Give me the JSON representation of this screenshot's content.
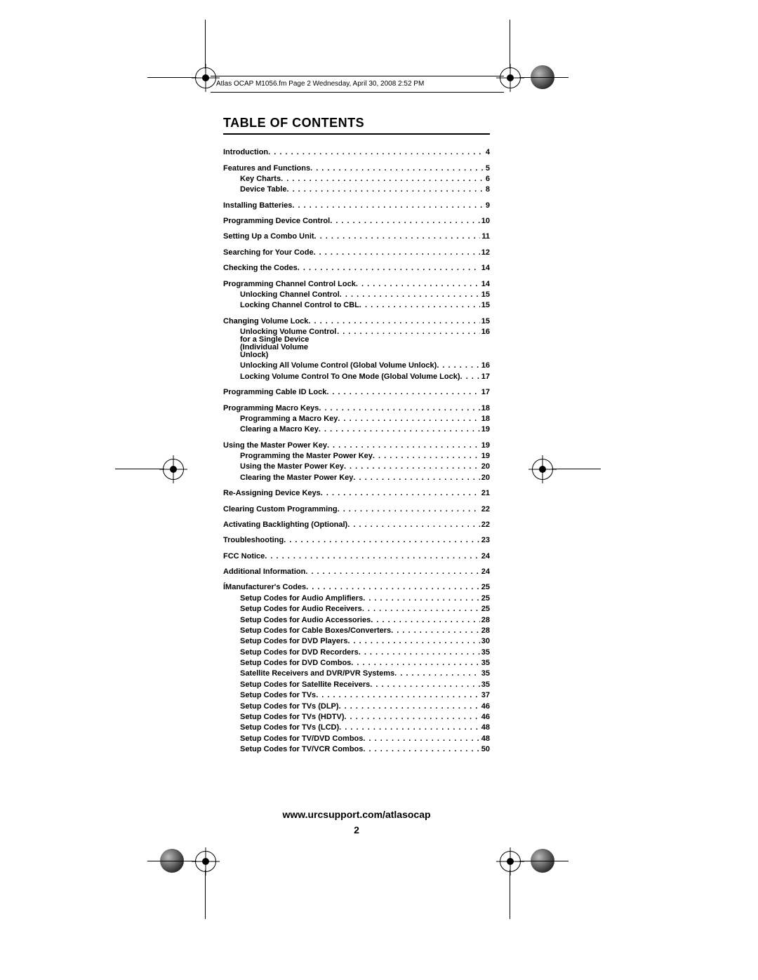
{
  "header_text": "Atlas OCAP M1056.fm  Page 2  Wednesday, April 30, 2008  2:52 PM",
  "title": "TABLE OF CONTENTS",
  "footer_url": "www.urcsupport.com/atlasocap",
  "footer_page": "2",
  "toc": [
    {
      "label": "Introduction",
      "page": "4",
      "level": 0,
      "gap_before": false
    },
    {
      "label": "Features and Functions",
      "page": "5",
      "level": 0,
      "gap_before": true
    },
    {
      "label": "Key Charts",
      "page": "6",
      "level": 1
    },
    {
      "label": "Device Table",
      "page": "8",
      "level": 1
    },
    {
      "label": "Installing Batteries",
      "page": "9",
      "level": 0,
      "gap_before": true
    },
    {
      "label": "Programming Device Control",
      "page": "10",
      "level": 0,
      "gap_before": true
    },
    {
      "label": "Setting Up a Combo Unit",
      "page": "11",
      "level": 0,
      "gap_before": true
    },
    {
      "label": "Searching for Your Code",
      "page": "12",
      "level": 0,
      "gap_before": true
    },
    {
      "label": "Checking the Codes",
      "page": "14",
      "level": 0,
      "gap_before": true
    },
    {
      "label": "Programming Channel Control Lock",
      "page": "14",
      "level": 0,
      "gap_before": true
    },
    {
      "label": "Unlocking Channel Control",
      "page": "15",
      "level": 1
    },
    {
      "label": "Locking Channel Control to CBL",
      "page": "15",
      "level": 1
    },
    {
      "label": "Changing Volume Lock",
      "page": "15",
      "level": 0,
      "gap_before": true
    },
    {
      "label": "Unlocking Volume Control for a Single Device (Individual Volume Unlock)",
      "page": "16",
      "level": 1,
      "wrap": true
    },
    {
      "label": "Unlocking All Volume Control (Global Volume Unlock)",
      "page": "16",
      "level": 1
    },
    {
      "label": "Locking Volume Control To One Mode (Global Volume Lock)",
      "page": "17",
      "level": 1
    },
    {
      "label": "Programming Cable ID Lock",
      "page": "17",
      "level": 0,
      "gap_before": true
    },
    {
      "label": "Programming Macro Keys",
      "page": "18",
      "level": 0,
      "gap_before": true
    },
    {
      "label": "Programming a Macro Key",
      "page": "18",
      "level": 1
    },
    {
      "label": "Clearing a Macro Key",
      "page": "19",
      "level": 1
    },
    {
      "label": "Using the Master Power Key",
      "page": "19",
      "level": 0,
      "gap_before": true
    },
    {
      "label": "Programming the Master Power Key",
      "page": "19",
      "level": 1
    },
    {
      "label": "Using the Master Power Key",
      "page": "20",
      "level": 1
    },
    {
      "label": "Clearing the Master Power Key",
      "page": "20",
      "level": 1
    },
    {
      "label": "Re-Assigning Device Keys",
      "page": "21",
      "level": 0,
      "gap_before": true
    },
    {
      "label": "Clearing Custom Programming",
      "page": "22",
      "level": 0,
      "gap_before": true
    },
    {
      "label": "Activating Backlighting (Optional)",
      "page": "22",
      "level": 0,
      "gap_before": true
    },
    {
      "label": "Troubleshooting",
      "page": "23",
      "level": 0,
      "gap_before": true
    },
    {
      "label": "FCC Notice",
      "page": "24",
      "level": 0,
      "gap_before": true
    },
    {
      "label": "Additional Information",
      "page": "24",
      "level": 0,
      "gap_before": true
    },
    {
      "label": "ÍManufacturer's Codes",
      "page": "25",
      "level": 0,
      "gap_before": true
    },
    {
      "label": "Setup Codes for Audio Amplifiers",
      "page": "25",
      "level": 1
    },
    {
      "label": "Setup Codes for Audio Receivers",
      "page": "25",
      "level": 1
    },
    {
      "label": "Setup Codes for Audio Accessories",
      "page": "28",
      "level": 1
    },
    {
      "label": "Setup Codes for Cable Boxes/Converters",
      "page": "28",
      "level": 1
    },
    {
      "label": "Setup Codes for DVD Players",
      "page": "30",
      "level": 1
    },
    {
      "label": "Setup Codes for DVD Recorders",
      "page": "35",
      "level": 1
    },
    {
      "label": "Setup Codes for DVD Combos",
      "page": "35",
      "level": 1
    },
    {
      "label": "Satellite Receivers and DVR/PVR Systems",
      "page": "35",
      "level": 1
    },
    {
      "label": "Setup Codes for Satellite Receivers",
      "page": "35",
      "level": 1
    },
    {
      "label": "Setup Codes for TVs",
      "page": "37",
      "level": 1
    },
    {
      "label": "Setup Codes for TVs (DLP)",
      "page": "46",
      "level": 1
    },
    {
      "label": "Setup Codes for TVs (HDTV)",
      "page": "46",
      "level": 1
    },
    {
      "label": "Setup Codes for TVs (LCD)",
      "page": "48",
      "level": 1
    },
    {
      "label": "Setup Codes for TV/DVD Combos",
      "page": "48",
      "level": 1
    },
    {
      "label": "Setup Codes for TV/VCR Combos",
      "page": "50",
      "level": 1
    }
  ]
}
